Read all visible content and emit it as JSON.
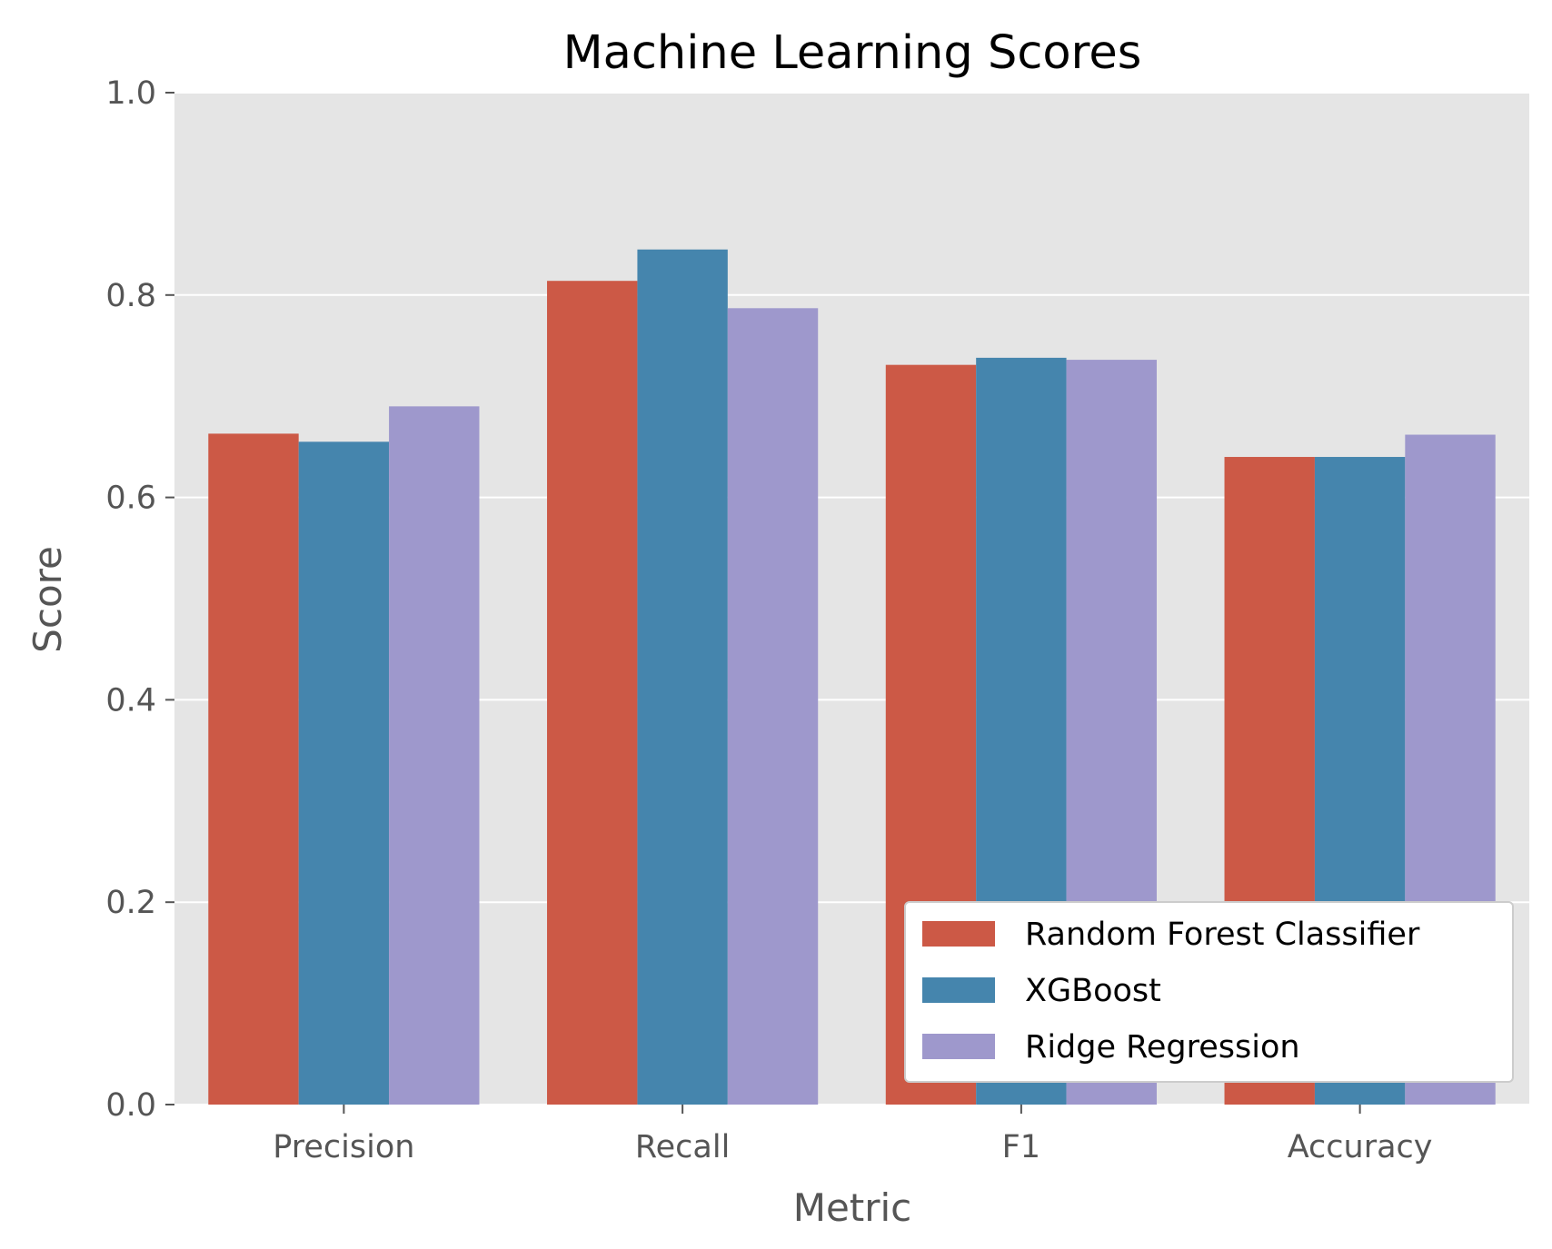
{
  "chart_data": {
    "type": "bar",
    "title": "Machine Learning Scores",
    "xlabel": "Metric",
    "ylabel": "Score",
    "categories": [
      "Precision",
      "Recall",
      "F1",
      "Accuracy"
    ],
    "ylim": [
      0,
      1.0
    ],
    "yticks": [
      "0.0",
      "0.2",
      "0.4",
      "0.6",
      "0.8",
      "1.0"
    ],
    "grid": true,
    "legend_position": "bottom-right",
    "series": [
      {
        "name": "Random Forest Classifier",
        "color": "#CC5946",
        "values": [
          0.663,
          0.814,
          0.731,
          0.64
        ]
      },
      {
        "name": "XGBoost",
        "color": "#4585AD",
        "values": [
          0.655,
          0.845,
          0.738,
          0.64
        ]
      },
      {
        "name": "Ridge Regression",
        "color": "#9E98CC",
        "values": [
          0.69,
          0.787,
          0.736,
          0.662
        ]
      }
    ]
  },
  "style": {
    "plot_background": "#E5E5E5",
    "grid_color": "#FFFFFF",
    "tick_color": "#555555"
  }
}
